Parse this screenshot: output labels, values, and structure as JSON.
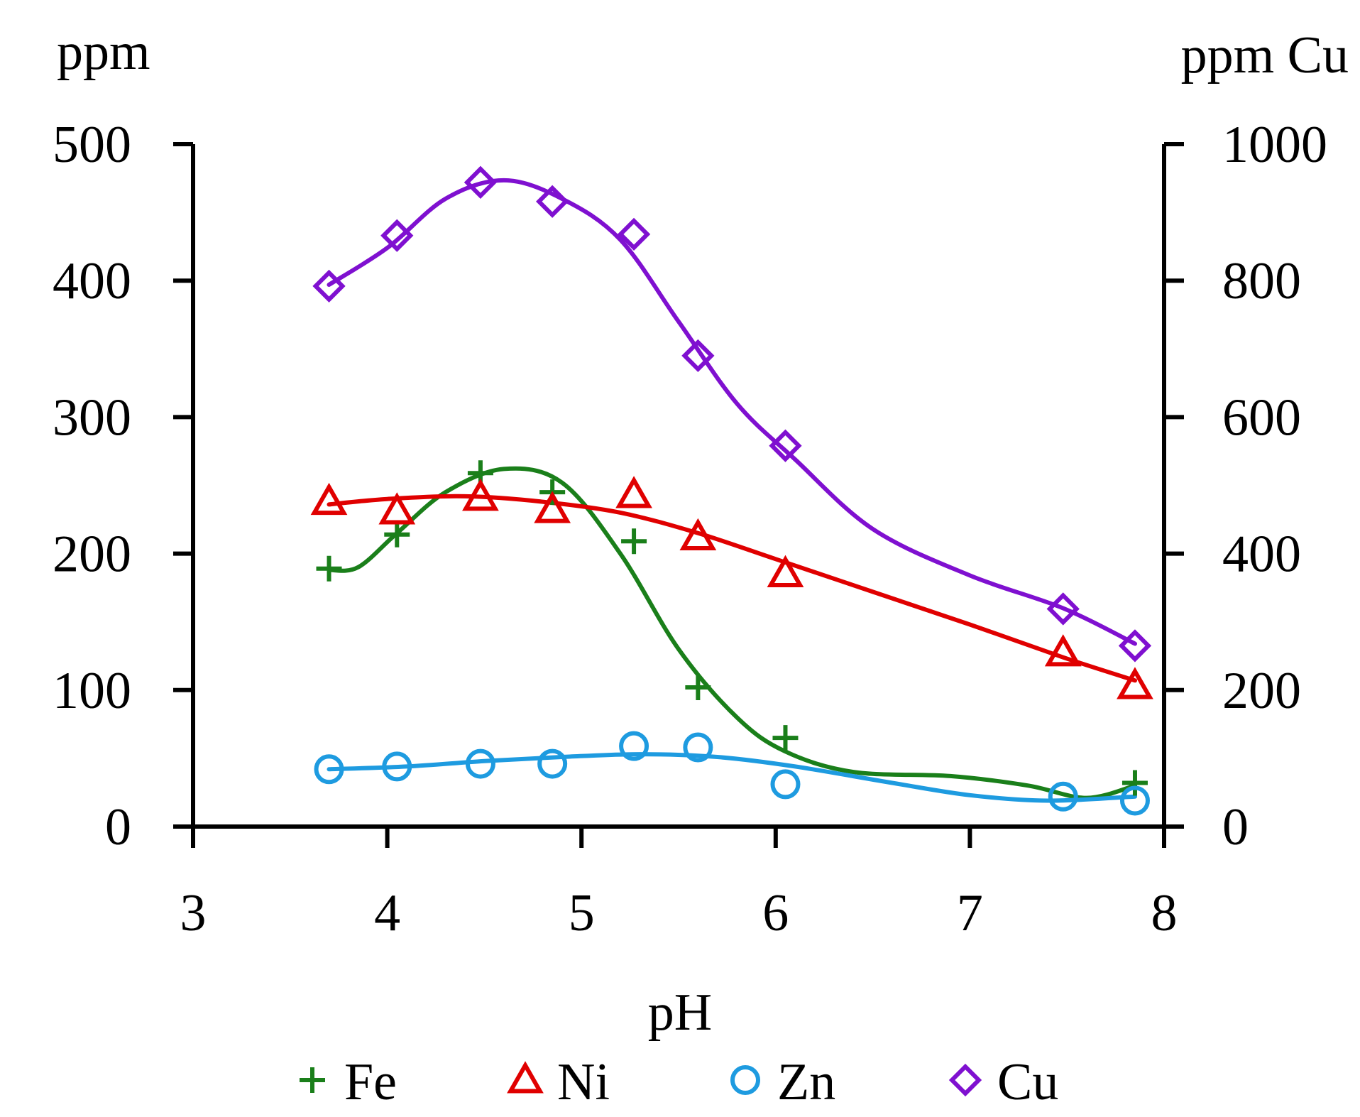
{
  "chart_data": {
    "type": "scatter",
    "title": "",
    "xlabel": "pH",
    "ylabel_left": "ppm",
    "ylabel_right": "ppm Cu",
    "xlim": [
      3,
      8
    ],
    "xticks": [
      3,
      4,
      5,
      6,
      7,
      8
    ],
    "ylim_left": [
      0,
      500
    ],
    "yticks_left": [
      0,
      100,
      200,
      300,
      400,
      500
    ],
    "ylim_right": [
      0,
      1000
    ],
    "yticks_right": [
      0,
      200,
      400,
      600,
      800,
      1000
    ],
    "legend_position": "bottom",
    "series": [
      {
        "name": "Fe",
        "marker": "plus",
        "color": "#1a7f1a",
        "axis": "left",
        "x": [
          3.7,
          4.05,
          4.48,
          4.85,
          5.27,
          5.6,
          6.05,
          7.85
        ],
        "y": [
          189,
          214,
          259,
          245,
          209,
          102,
          65,
          32
        ],
        "curve_x": [
          3.7,
          3.85,
          4.05,
          4.3,
          4.6,
          4.9,
          5.2,
          5.5,
          5.8,
          6.05,
          6.4,
          6.9,
          7.3,
          7.6,
          7.85
        ],
        "curve_y": [
          188,
          190,
          215,
          245,
          262,
          252,
          200,
          130,
          80,
          55,
          40,
          37,
          30,
          21,
          30
        ]
      },
      {
        "name": "Ni",
        "marker": "triangle",
        "color": "#e00000",
        "axis": "left",
        "x": [
          3.7,
          4.05,
          4.48,
          4.85,
          5.27,
          5.6,
          6.05,
          7.48,
          7.85
        ],
        "y": [
          238,
          231,
          241,
          232,
          243,
          212,
          185,
          127,
          103
        ],
        "curve_x": [
          3.7,
          4.0,
          4.4,
          4.8,
          5.2,
          5.6,
          6.0,
          6.5,
          7.0,
          7.48,
          7.85
        ],
        "curve_y": [
          236,
          240,
          242,
          238,
          230,
          215,
          196,
          172,
          148,
          124,
          107
        ]
      },
      {
        "name": "Zn",
        "marker": "circle",
        "color": "#1e9be0",
        "axis": "left",
        "x": [
          3.7,
          4.05,
          4.48,
          4.85,
          5.27,
          5.6,
          6.05,
          7.48,
          7.85
        ],
        "y": [
          42,
          44,
          46,
          46,
          59,
          58,
          31,
          22,
          19
        ],
        "curve_x": [
          3.7,
          4.1,
          4.5,
          4.9,
          5.3,
          5.7,
          6.1,
          6.6,
          7.0,
          7.4,
          7.85
        ],
        "curve_y": [
          42,
          44,
          48,
          51,
          53,
          51,
          44,
          32,
          23,
          19,
          22
        ]
      },
      {
        "name": "Cu",
        "marker": "diamond",
        "color": "#7f10d0",
        "axis": "right",
        "x": [
          3.7,
          4.05,
          4.48,
          4.85,
          5.27,
          5.6,
          6.05,
          7.48,
          7.85
        ],
        "y": [
          792,
          866,
          944,
          916,
          868,
          690,
          558,
          319,
          265
        ],
        "curve_x": [
          3.7,
          4.0,
          4.3,
          4.6,
          4.9,
          5.2,
          5.5,
          5.8,
          6.1,
          6.5,
          7.0,
          7.48,
          7.85
        ],
        "curve_y": [
          794,
          848,
          920,
          947,
          920,
          860,
          740,
          620,
          538,
          436,
          368,
          320,
          268
        ]
      }
    ]
  }
}
